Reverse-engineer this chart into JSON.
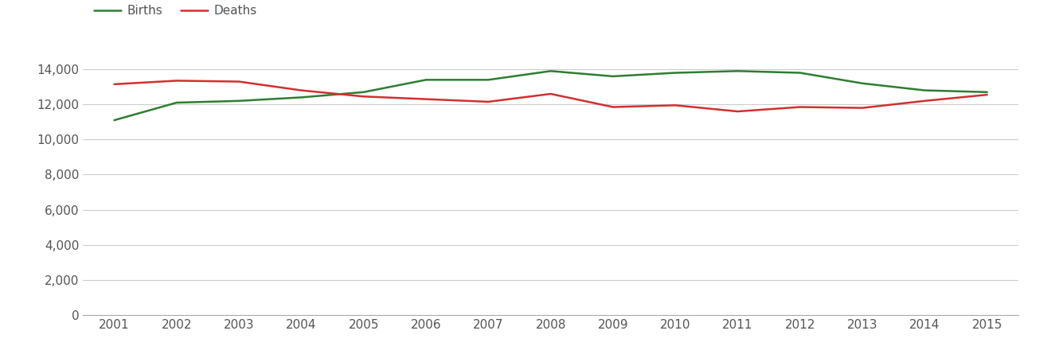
{
  "years": [
    2001,
    2002,
    2003,
    2004,
    2005,
    2006,
    2007,
    2008,
    2009,
    2010,
    2011,
    2012,
    2013,
    2014,
    2015
  ],
  "births": [
    11100,
    12100,
    12200,
    12400,
    12700,
    13400,
    13400,
    13900,
    13600,
    13800,
    13900,
    13800,
    13200,
    12800,
    12700
  ],
  "deaths": [
    13150,
    13350,
    13300,
    12800,
    12450,
    12300,
    12150,
    12600,
    11850,
    11950,
    11600,
    11850,
    11800,
    12200,
    12550
  ],
  "births_color": "#2e7d32",
  "deaths_color": "#d32f2f",
  "line_width": 1.8,
  "ylim": [
    0,
    15500
  ],
  "yticks": [
    0,
    2000,
    4000,
    6000,
    8000,
    10000,
    12000,
    14000
  ],
  "legend_labels": [
    "Births",
    "Deaths"
  ],
  "background_color": "#ffffff",
  "grid_color": "#cccccc",
  "tick_label_color": "#555555",
  "tick_fontsize": 11
}
